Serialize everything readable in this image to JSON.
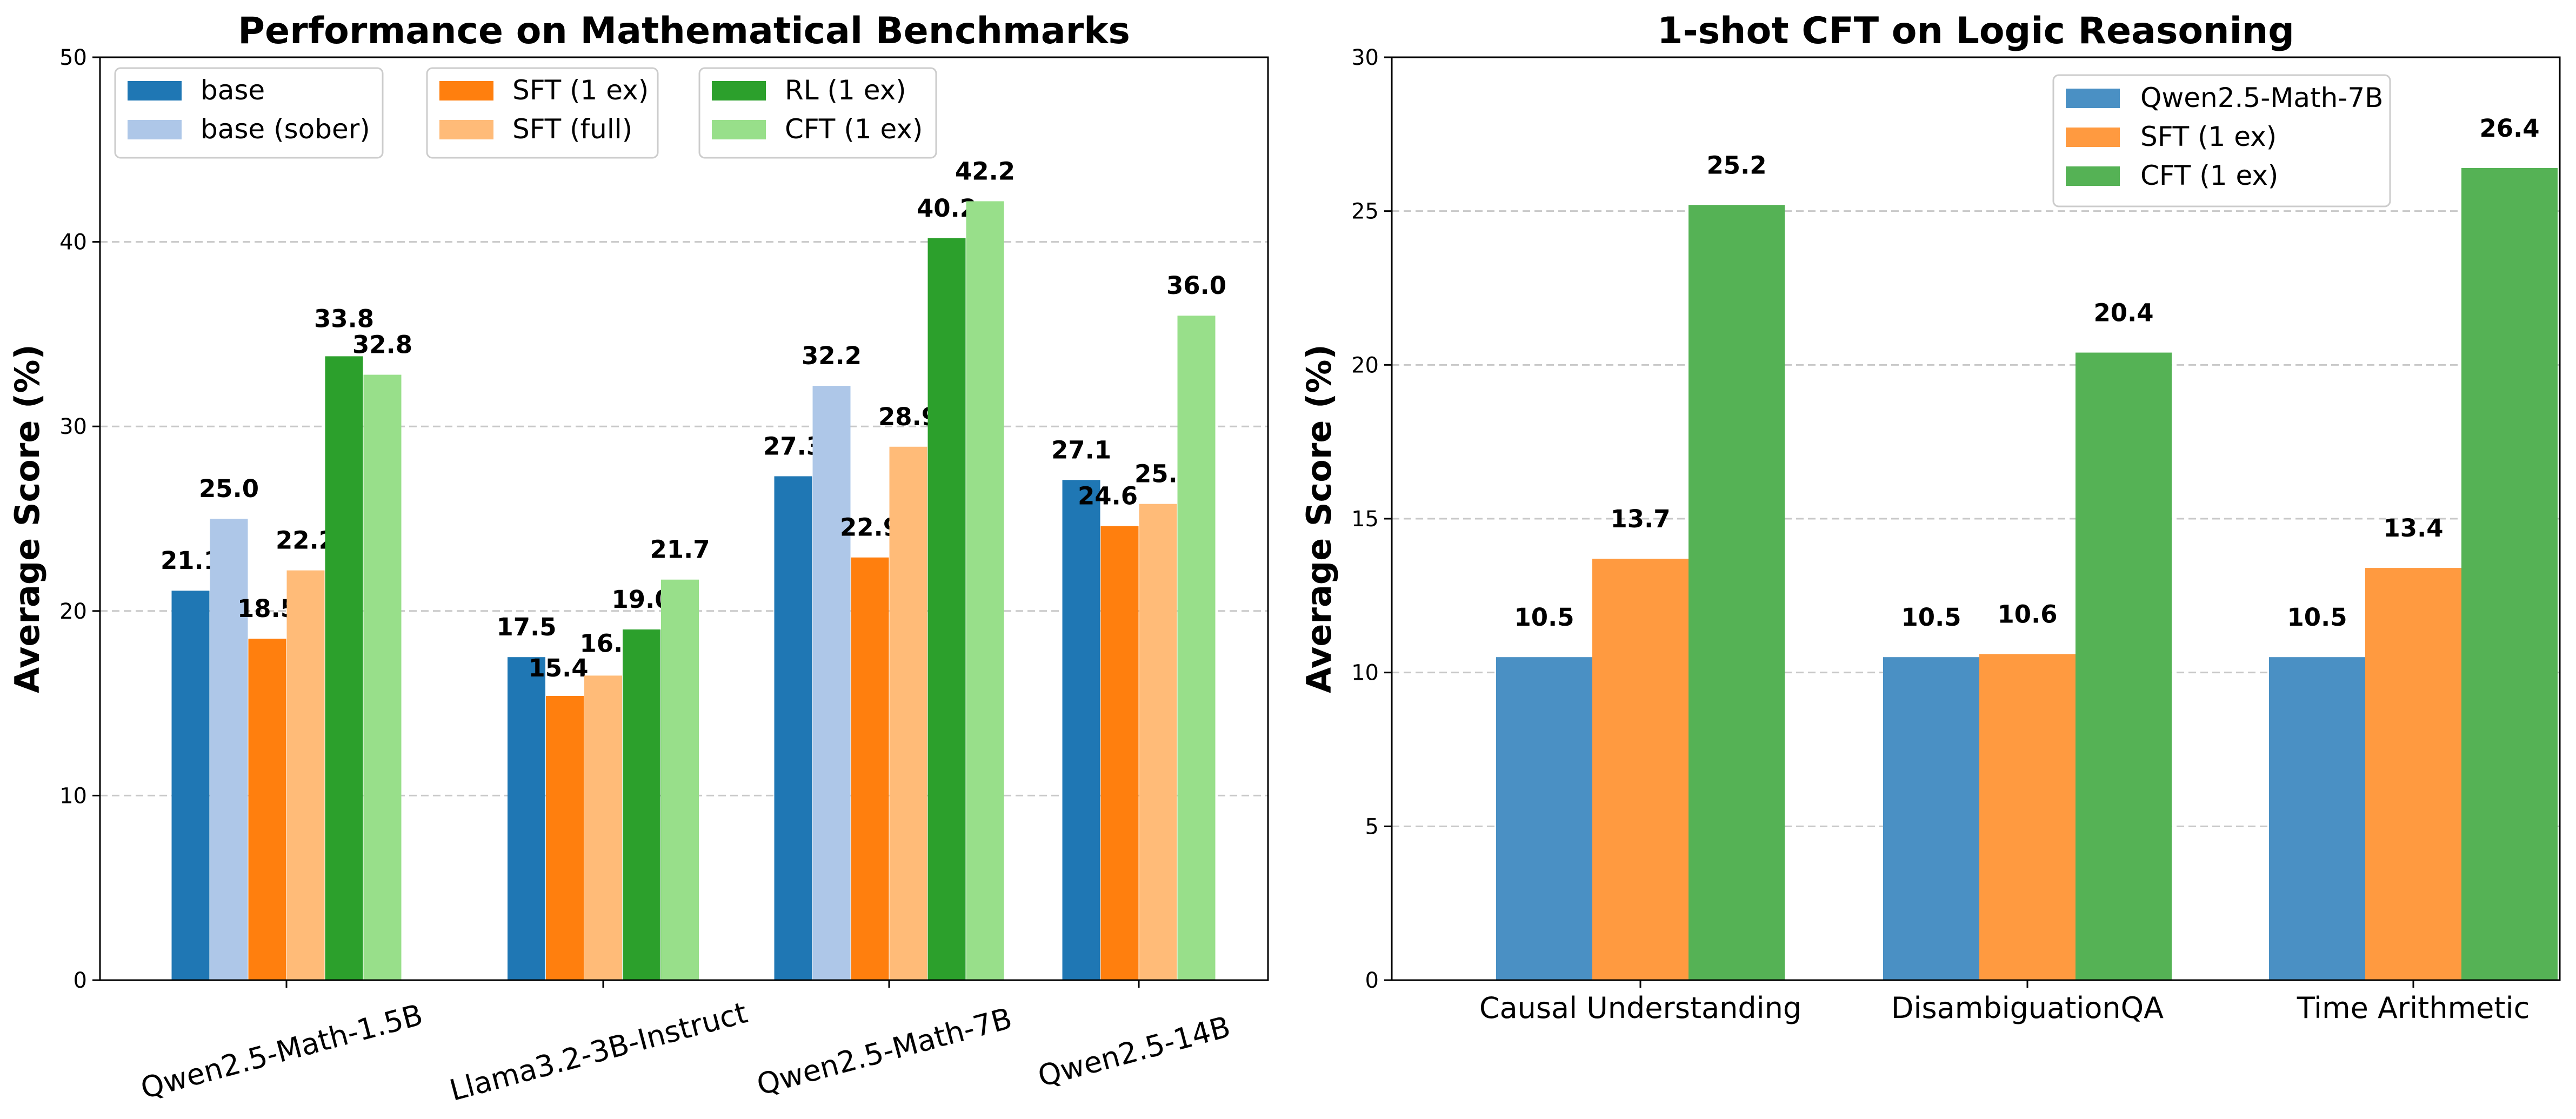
{
  "chart_data": [
    {
      "type": "bar",
      "title": "Performance on Mathematical Benchmarks",
      "xlabel": "",
      "ylabel": "Average Score (%)",
      "ylim": [
        0,
        50
      ],
      "yticks": [
        0,
        10,
        20,
        30,
        40,
        50
      ],
      "grid": "y-dashed",
      "legend_position": "top-left",
      "categories": [
        "Qwen2.5-Math-1.5B",
        "Llama3.2-3B-Instruct",
        "Qwen2.5-Math-7B",
        "Qwen2.5-14B"
      ],
      "series": [
        {
          "name": "base",
          "color": "#1f77b4",
          "values": [
            21.1,
            17.5,
            27.3,
            27.1
          ]
        },
        {
          "name": "base (sober)",
          "color": "#aec7e8",
          "values": [
            25.0,
            null,
            32.2,
            null
          ]
        },
        {
          "name": "SFT (1 ex)",
          "color": "#ff7f0e",
          "values": [
            18.5,
            15.4,
            22.9,
            24.6
          ]
        },
        {
          "name": "SFT (full)",
          "color": "#ffbb78",
          "values": [
            22.2,
            16.5,
            28.9,
            25.8
          ]
        },
        {
          "name": "RL (1 ex)",
          "color": "#2ca02c",
          "values": [
            33.8,
            19.0,
            40.2,
            null
          ]
        },
        {
          "name": "CFT (1 ex)",
          "color": "#98df8a",
          "values": [
            32.8,
            21.7,
            42.2,
            36.0
          ]
        }
      ]
    },
    {
      "type": "bar",
      "title": "1-shot CFT on Logic Reasoning",
      "xlabel": "",
      "ylabel": "Average Score (%)",
      "ylim": [
        0,
        30
      ],
      "yticks": [
        0,
        5,
        10,
        15,
        20,
        25,
        30
      ],
      "grid": "y-dashed",
      "legend_position": "top-right",
      "categories": [
        "Causal Understanding",
        "DisambiguationQA",
        "Time Arithmetic"
      ],
      "series": [
        {
          "name": "Qwen2.5-Math-7B",
          "color": "#4a90c4",
          "values": [
            10.5,
            10.5,
            10.5
          ]
        },
        {
          "name": "SFT (1 ex)",
          "color": "#ff9a40",
          "values": [
            13.7,
            10.6,
            13.4
          ]
        },
        {
          "name": "CFT (1 ex)",
          "color": "#55b255",
          "values": [
            25.2,
            20.4,
            26.4
          ]
        }
      ]
    }
  ]
}
